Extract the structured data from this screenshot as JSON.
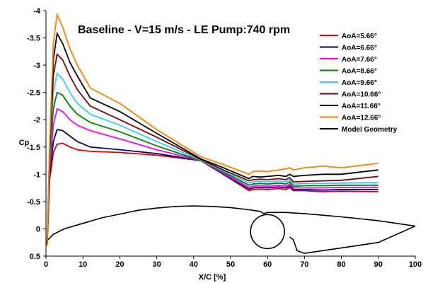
{
  "chart_data": {
    "type": "line",
    "title": "Baseline - V=15 m/s - LE Pump:740 rpm",
    "xlabel": "X/C [%]",
    "ylabel": "Cp",
    "xlim": [
      0,
      100
    ],
    "ylim": [
      0.5,
      -4
    ],
    "y_axis_inverted": true,
    "grid": false,
    "legend_position": "top-right",
    "x_ticks": [
      "0",
      "10",
      "20",
      "30",
      "40",
      "50",
      "60",
      "70",
      "80",
      "90",
      "100"
    ],
    "y_ticks": [
      "-4",
      "-3.5",
      "-3",
      "-2.5",
      "-2",
      "-1.5",
      "-1",
      "-0.5",
      "0",
      "0.5"
    ],
    "series": [
      {
        "name": "AoA=5.66°",
        "color": "#e00000",
        "x": [
          0.3,
          1.0,
          2.0,
          3.0,
          4.5,
          6.5,
          8.5,
          12,
          20,
          30,
          42,
          48,
          55,
          56,
          58,
          60,
          63,
          65,
          66,
          67,
          70,
          75,
          80,
          90
        ],
        "y": [
          0.3,
          -0.9,
          -1.4,
          -1.55,
          -1.57,
          -1.5,
          -1.45,
          -1.42,
          -1.4,
          -1.35,
          -1.25,
          -1.0,
          -0.7,
          -0.72,
          -0.73,
          -0.72,
          -0.74,
          -0.72,
          -0.76,
          -0.7,
          -0.7,
          -0.68,
          -0.69,
          -0.68
        ]
      },
      {
        "name": "AoA=6.66°",
        "color": "#000080",
        "x": [
          0.3,
          1.0,
          2.0,
          3.0,
          4.5,
          6.5,
          8.5,
          12,
          20,
          30,
          42,
          48,
          55,
          56,
          58,
          60,
          63,
          65,
          66,
          67,
          70,
          75,
          80,
          90
        ],
        "y": [
          0.3,
          -1.0,
          -1.6,
          -1.82,
          -1.8,
          -1.7,
          -1.6,
          -1.5,
          -1.45,
          -1.38,
          -1.25,
          -1.0,
          -0.73,
          -0.75,
          -0.76,
          -0.75,
          -0.77,
          -0.75,
          -0.79,
          -0.72,
          -0.72,
          -0.71,
          -0.72,
          -0.72
        ]
      },
      {
        "name": "AoA=7.66°",
        "color": "#ff00ff",
        "x": [
          0.3,
          1.0,
          2.0,
          3.0,
          4.5,
          6.5,
          8.5,
          12,
          20,
          30,
          42,
          48,
          55,
          56,
          58,
          60,
          63,
          65,
          66,
          67,
          70,
          75,
          80,
          90
        ],
        "y": [
          0.3,
          -1.1,
          -1.9,
          -2.2,
          -2.15,
          -2.0,
          -1.9,
          -1.8,
          -1.65,
          -1.45,
          -1.25,
          -1.02,
          -0.76,
          -0.78,
          -0.79,
          -0.78,
          -0.8,
          -0.78,
          -0.82,
          -0.75,
          -0.75,
          -0.75,
          -0.76,
          -0.76
        ]
      },
      {
        "name": "AoA=8.66°",
        "color": "#008000",
        "x": [
          0.3,
          1.0,
          2.0,
          3.0,
          4.5,
          6.5,
          8.5,
          12,
          20,
          30,
          42,
          48,
          55,
          56,
          58,
          60,
          63,
          65,
          66,
          67,
          70,
          75,
          80,
          90
        ],
        "y": [
          0.3,
          -1.2,
          -2.2,
          -2.5,
          -2.45,
          -2.25,
          -2.1,
          -1.95,
          -1.78,
          -1.52,
          -1.25,
          -1.04,
          -0.8,
          -0.82,
          -0.83,
          -0.82,
          -0.84,
          -0.82,
          -0.86,
          -0.78,
          -0.79,
          -0.79,
          -0.8,
          -0.8
        ]
      },
      {
        "name": "AoA=9.66°",
        "color": "#33ccff",
        "x": [
          0.3,
          1.0,
          2.0,
          3.0,
          4.5,
          6.5,
          8.5,
          12,
          20,
          30,
          42,
          48,
          55,
          56,
          58,
          60,
          63,
          65,
          66,
          67,
          70,
          75,
          80,
          90
        ],
        "y": [
          0.3,
          -1.3,
          -2.5,
          -2.85,
          -2.75,
          -2.5,
          -2.3,
          -2.1,
          -1.9,
          -1.6,
          -1.26,
          -1.06,
          -0.84,
          -0.86,
          -0.87,
          -0.86,
          -0.88,
          -0.86,
          -0.9,
          -0.82,
          -0.83,
          -0.83,
          -0.84,
          -0.85
        ]
      },
      {
        "name": "AoA=10.66°",
        "color": "#800000",
        "x": [
          0.3,
          1.0,
          2.0,
          3.0,
          4.5,
          6.5,
          8.5,
          12,
          20,
          30,
          42,
          48,
          55,
          56,
          58,
          60,
          63,
          65,
          66,
          67,
          70,
          75,
          80,
          90
        ],
        "y": [
          0.3,
          -1.4,
          -2.8,
          -3.2,
          -3.1,
          -2.8,
          -2.55,
          -2.25,
          -2.0,
          -1.68,
          -1.27,
          -1.08,
          -0.88,
          -0.9,
          -0.91,
          -0.9,
          -0.92,
          -0.9,
          -0.94,
          -0.86,
          -0.87,
          -0.88,
          -0.89,
          -0.96
        ]
      },
      {
        "name": "AoA=11.66°",
        "color": "#000000",
        "x": [
          0.3,
          1.0,
          2.0,
          3.0,
          4.5,
          6.5,
          8.5,
          12,
          20,
          30,
          42,
          48,
          55,
          56,
          58,
          60,
          63,
          65,
          66,
          67,
          70,
          75,
          80,
          90
        ],
        "y": [
          0.3,
          -1.5,
          -3.1,
          -3.58,
          -3.4,
          -3.05,
          -2.8,
          -2.4,
          -2.15,
          -1.75,
          -1.28,
          -1.12,
          -0.92,
          -0.96,
          -0.95,
          -0.96,
          -0.98,
          -0.96,
          -1.0,
          -0.96,
          -0.98,
          -1.0,
          -1.0,
          -1.08
        ]
      },
      {
        "name": "AoA=12.66°",
        "color": "#ff8000",
        "x": [
          0.3,
          1.0,
          2.0,
          3.0,
          4.5,
          6.5,
          8.5,
          12,
          20,
          30,
          42,
          48,
          55,
          56,
          58,
          60,
          63,
          65,
          66,
          67,
          70,
          75,
          80,
          90
        ],
        "y": [
          0.3,
          -1.6,
          -3.4,
          -3.93,
          -3.7,
          -3.3,
          -3.0,
          -2.58,
          -2.3,
          -1.82,
          -1.32,
          -1.18,
          -1.0,
          -1.05,
          -1.06,
          -1.05,
          -1.08,
          -1.1,
          -1.12,
          -1.08,
          -1.12,
          -1.15,
          -1.12,
          -1.2
        ]
      }
    ],
    "geometry": {
      "name": "Model Geometry",
      "color": "#000000",
      "x": [
        0,
        0.5,
        2,
        5,
        10,
        15,
        20,
        25,
        30,
        35,
        40,
        45,
        50,
        55,
        58,
        59,
        60,
        62,
        65,
        70,
        75,
        80,
        90,
        100,
        90,
        80,
        70,
        68,
        67,
        66
      ],
      "y": [
        0.3,
        0.2,
        0.1,
        0.0,
        -0.1,
        -0.2,
        -0.27,
        -0.34,
        -0.38,
        -0.41,
        -0.42,
        -0.41,
        -0.39,
        -0.35,
        -0.32,
        -0.28,
        -0.3,
        -0.3,
        -0.3,
        -0.28,
        -0.25,
        -0.22,
        -0.15,
        -0.05,
        0.25,
        0.35,
        0.45,
        0.4,
        0.2,
        0.15
      ]
    }
  }
}
